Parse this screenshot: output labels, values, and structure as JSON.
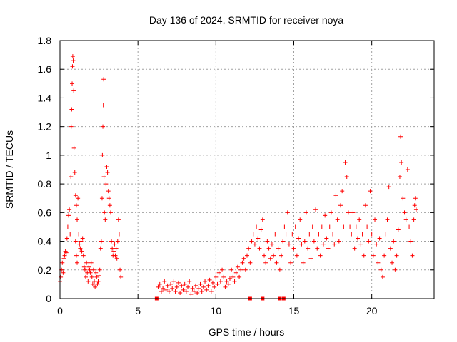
{
  "chart_data": {
    "type": "scatter",
    "title": "Day 136 of 2024, SRMTID for receiver noya",
    "xlabel": "GPS time / hours",
    "ylabel": "SRMTID / TECUs",
    "xlim": [
      0,
      24
    ],
    "ylim": [
      0,
      1.8
    ],
    "xticks": [
      0,
      5,
      10,
      15,
      20
    ],
    "yticks": [
      0,
      0.2,
      0.4,
      0.6,
      0.8,
      1,
      1.2,
      1.4,
      1.6,
      1.8
    ],
    "xtick_labels": [
      "0",
      "5",
      "10",
      "15",
      "20"
    ],
    "ytick_labels": [
      "0",
      "0.2",
      "0.4",
      "0.6",
      "0.8",
      "1",
      "1.2",
      "1.4",
      "1.6",
      "1.8"
    ],
    "grid": true,
    "marker": "+",
    "marker_color": "#ff0000",
    "square_marks": [
      {
        "x": 6.2,
        "y": 0
      },
      {
        "x": 12.2,
        "y": 0
      },
      {
        "x": 13.0,
        "y": 0
      },
      {
        "x": 14.1,
        "y": 0
      },
      {
        "x": 14.35,
        "y": 0
      }
    ],
    "series": [
      {
        "name": "SRMTID",
        "points": [
          [
            0.0,
            0.12
          ],
          [
            0.05,
            0.15
          ],
          [
            0.1,
            0.2
          ],
          [
            0.15,
            0.25
          ],
          [
            0.2,
            0.18
          ],
          [
            0.25,
            0.28
          ],
          [
            0.3,
            0.3
          ],
          [
            0.35,
            0.33
          ],
          [
            0.4,
            0.32
          ],
          [
            0.45,
            0.42
          ],
          [
            0.5,
            0.5
          ],
          [
            0.55,
            0.58
          ],
          [
            0.6,
            0.62
          ],
          [
            0.65,
            0.45
          ],
          [
            0.7,
            0.85
          ],
          [
            0.72,
            1.2
          ],
          [
            0.75,
            1.32
          ],
          [
            0.78,
            1.5
          ],
          [
            0.8,
            1.62
          ],
          [
            0.82,
            1.69
          ],
          [
            0.85,
            1.66
          ],
          [
            0.88,
            1.45
          ],
          [
            0.9,
            1.05
          ],
          [
            0.95,
            0.88
          ],
          [
            1.0,
            0.72
          ],
          [
            1.05,
            0.65
          ],
          [
            1.1,
            0.55
          ],
          [
            1.0,
            0.4
          ],
          [
            1.05,
            0.3
          ],
          [
            1.1,
            0.25
          ],
          [
            1.15,
            0.7
          ],
          [
            1.2,
            0.45
          ],
          [
            1.25,
            0.38
          ],
          [
            1.3,
            0.35
          ],
          [
            1.35,
            0.4
          ],
          [
            1.4,
            0.33
          ],
          [
            1.45,
            0.42
          ],
          [
            1.5,
            0.3
          ],
          [
            1.55,
            0.22
          ],
          [
            1.6,
            0.2
          ],
          [
            1.65,
            0.15
          ],
          [
            1.7,
            0.25
          ],
          [
            1.75,
            0.18
          ],
          [
            1.8,
            0.12
          ],
          [
            1.85,
            0.22
          ],
          [
            1.9,
            0.2
          ],
          [
            1.95,
            0.18
          ],
          [
            2.0,
            0.25
          ],
          [
            2.05,
            0.15
          ],
          [
            2.1,
            0.1
          ],
          [
            2.15,
            0.2
          ],
          [
            2.2,
            0.12
          ],
          [
            2.25,
            0.08
          ],
          [
            2.3,
            0.18
          ],
          [
            2.35,
            0.15
          ],
          [
            2.4,
            0.1
          ],
          [
            2.45,
            0.12
          ],
          [
            2.5,
            0.16
          ],
          [
            2.55,
            0.2
          ],
          [
            2.6,
            0.35
          ],
          [
            2.65,
            0.4
          ],
          [
            2.7,
            0.7
          ],
          [
            2.72,
            1.0
          ],
          [
            2.75,
            1.2
          ],
          [
            2.78,
            1.35
          ],
          [
            2.8,
            1.53
          ],
          [
            2.82,
            0.85
          ],
          [
            2.85,
            0.6
          ],
          [
            2.9,
            0.55
          ],
          [
            2.95,
            0.8
          ],
          [
            3.0,
            0.92
          ],
          [
            3.05,
            0.88
          ],
          [
            3.1,
            0.75
          ],
          [
            3.15,
            0.7
          ],
          [
            3.2,
            0.65
          ],
          [
            3.25,
            0.6
          ],
          [
            3.3,
            0.4
          ],
          [
            3.35,
            0.35
          ],
          [
            3.4,
            0.3
          ],
          [
            3.45,
            0.33
          ],
          [
            3.5,
            0.38
          ],
          [
            3.55,
            0.3
          ],
          [
            3.6,
            0.35
          ],
          [
            3.65,
            0.28
          ],
          [
            3.7,
            0.4
          ],
          [
            3.75,
            0.55
          ],
          [
            3.8,
            0.45
          ],
          [
            3.85,
            0.2
          ],
          [
            3.9,
            0.15
          ],
          [
            6.3,
            0.08
          ],
          [
            6.4,
            0.1
          ],
          [
            6.5,
            0.05
          ],
          [
            6.6,
            0.07
          ],
          [
            6.7,
            0.12
          ],
          [
            6.8,
            0.06
          ],
          [
            6.9,
            0.09
          ],
          [
            7.0,
            0.05
          ],
          [
            7.1,
            0.1
          ],
          [
            7.2,
            0.07
          ],
          [
            7.3,
            0.12
          ],
          [
            7.4,
            0.05
          ],
          [
            7.5,
            0.08
          ],
          [
            7.6,
            0.11
          ],
          [
            7.7,
            0.04
          ],
          [
            7.8,
            0.09
          ],
          [
            7.9,
            0.06
          ],
          [
            8.0,
            0.1
          ],
          [
            8.1,
            0.05
          ],
          [
            8.2,
            0.08
          ],
          [
            8.3,
            0.12
          ],
          [
            8.4,
            0.03
          ],
          [
            8.5,
            0.07
          ],
          [
            8.6,
            0.05
          ],
          [
            8.7,
            0.09
          ],
          [
            8.8,
            0.04
          ],
          [
            8.9,
            0.07
          ],
          [
            9.0,
            0.1
          ],
          [
            9.1,
            0.05
          ],
          [
            9.2,
            0.08
          ],
          [
            9.3,
            0.12
          ],
          [
            9.4,
            0.06
          ],
          [
            9.5,
            0.09
          ],
          [
            9.6,
            0.13
          ],
          [
            9.7,
            0.05
          ],
          [
            9.8,
            0.11
          ],
          [
            9.9,
            0.08
          ],
          [
            10.0,
            0.15
          ],
          [
            10.1,
            0.1
          ],
          [
            10.2,
            0.18
          ],
          [
            10.3,
            0.12
          ],
          [
            10.4,
            0.2
          ],
          [
            10.5,
            0.15
          ],
          [
            10.6,
            0.08
          ],
          [
            10.7,
            0.12
          ],
          [
            10.8,
            0.1
          ],
          [
            10.9,
            0.14
          ],
          [
            11.0,
            0.2
          ],
          [
            11.1,
            0.15
          ],
          [
            11.2,
            0.12
          ],
          [
            11.3,
            0.18
          ],
          [
            11.4,
            0.22
          ],
          [
            11.5,
            0.15
          ],
          [
            11.6,
            0.2
          ],
          [
            11.7,
            0.25
          ],
          [
            11.8,
            0.28
          ],
          [
            11.9,
            0.2
          ],
          [
            12.0,
            0.3
          ],
          [
            12.1,
            0.35
          ],
          [
            12.2,
            0.25
          ],
          [
            12.3,
            0.4
          ],
          [
            12.4,
            0.45
          ],
          [
            12.5,
            0.38
          ],
          [
            12.6,
            0.5
          ],
          [
            12.7,
            0.42
          ],
          [
            12.8,
            0.35
          ],
          [
            12.9,
            0.48
          ],
          [
            13.0,
            0.55
          ],
          [
            13.1,
            0.3
          ],
          [
            13.2,
            0.25
          ],
          [
            13.3,
            0.4
          ],
          [
            13.4,
            0.35
          ],
          [
            13.5,
            0.28
          ],
          [
            13.6,
            0.38
          ],
          [
            13.7,
            0.3
          ],
          [
            13.8,
            0.45
          ],
          [
            13.9,
            0.25
          ],
          [
            14.0,
            0.35
          ],
          [
            14.1,
            0.2
          ],
          [
            14.2,
            0.3
          ],
          [
            14.3,
            0.4
          ],
          [
            14.4,
            0.5
          ],
          [
            14.5,
            0.45
          ],
          [
            14.6,
            0.6
          ],
          [
            14.7,
            0.38
          ],
          [
            14.8,
            0.25
          ],
          [
            14.9,
            0.45
          ],
          [
            15.0,
            0.35
          ],
          [
            15.1,
            0.5
          ],
          [
            15.2,
            0.3
          ],
          [
            15.3,
            0.42
          ],
          [
            15.4,
            0.55
          ],
          [
            15.5,
            0.38
          ],
          [
            15.6,
            0.25
          ],
          [
            15.7,
            0.4
          ],
          [
            15.8,
            0.6
          ],
          [
            15.9,
            0.35
          ],
          [
            16.0,
            0.45
          ],
          [
            16.1,
            0.28
          ],
          [
            16.2,
            0.5
          ],
          [
            16.3,
            0.4
          ],
          [
            16.4,
            0.62
          ],
          [
            16.5,
            0.35
          ],
          [
            16.6,
            0.45
          ],
          [
            16.7,
            0.3
          ],
          [
            16.8,
            0.5
          ],
          [
            16.9,
            0.38
          ],
          [
            17.0,
            0.58
          ],
          [
            17.1,
            0.42
          ],
          [
            17.2,
            0.35
          ],
          [
            17.3,
            0.5
          ],
          [
            17.4,
            0.6
          ],
          [
            17.5,
            0.45
          ],
          [
            17.6,
            0.38
          ],
          [
            17.7,
            0.72
          ],
          [
            17.8,
            0.55
          ],
          [
            17.9,
            0.4
          ],
          [
            18.0,
            0.65
          ],
          [
            18.1,
            0.75
          ],
          [
            18.2,
            0.5
          ],
          [
            18.3,
            0.95
          ],
          [
            18.4,
            0.85
          ],
          [
            18.5,
            0.6
          ],
          [
            18.6,
            0.5
          ],
          [
            18.7,
            0.45
          ],
          [
            18.8,
            0.6
          ],
          [
            18.9,
            0.35
          ],
          [
            19.0,
            0.5
          ],
          [
            19.1,
            0.42
          ],
          [
            19.2,
            0.55
          ],
          [
            19.3,
            0.38
          ],
          [
            19.4,
            0.45
          ],
          [
            19.5,
            0.3
          ],
          [
            19.6,
            0.65
          ],
          [
            19.7,
            0.5
          ],
          [
            19.8,
            0.4
          ],
          [
            19.9,
            0.75
          ],
          [
            20.0,
            0.45
          ],
          [
            20.1,
            0.3
          ],
          [
            20.2,
            0.55
          ],
          [
            20.3,
            0.38
          ],
          [
            20.4,
            0.25
          ],
          [
            20.5,
            0.42
          ],
          [
            20.6,
            0.2
          ],
          [
            20.7,
            0.15
          ],
          [
            20.8,
            0.3
          ],
          [
            20.9,
            0.45
          ],
          [
            21.0,
            0.55
          ],
          [
            21.1,
            0.78
          ],
          [
            21.2,
            0.35
          ],
          [
            21.3,
            0.25
          ],
          [
            21.4,
            0.4
          ],
          [
            21.5,
            0.2
          ],
          [
            21.6,
            0.3
          ],
          [
            21.7,
            0.48
          ],
          [
            21.8,
            0.85
          ],
          [
            21.85,
            1.13
          ],
          [
            21.9,
            0.95
          ],
          [
            22.0,
            0.7
          ],
          [
            22.1,
            0.6
          ],
          [
            22.2,
            0.55
          ],
          [
            22.3,
            0.9
          ],
          [
            22.4,
            0.5
          ],
          [
            22.5,
            0.4
          ],
          [
            22.6,
            0.3
          ],
          [
            22.7,
            0.55
          ],
          [
            22.75,
            0.65
          ],
          [
            22.8,
            0.7
          ],
          [
            22.85,
            0.62
          ]
        ]
      }
    ]
  }
}
